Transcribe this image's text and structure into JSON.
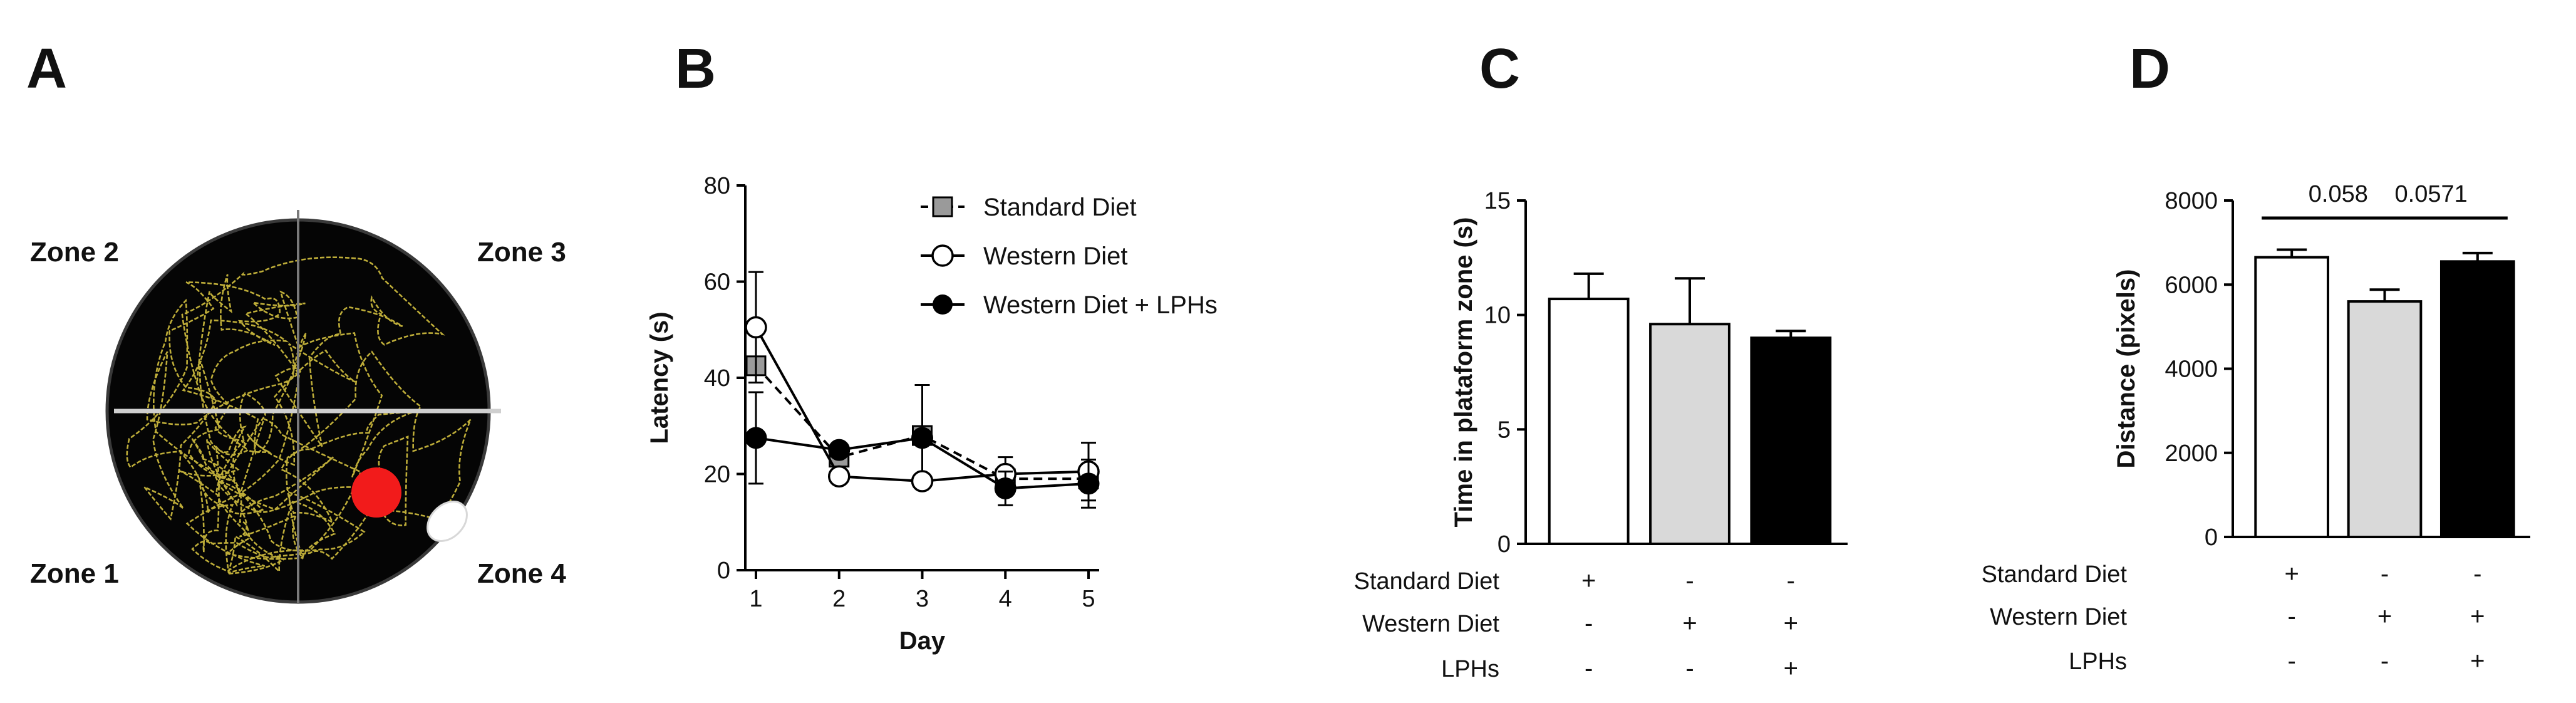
{
  "panels": [
    {
      "label": "A"
    },
    {
      "label": "B"
    },
    {
      "label": "C"
    },
    {
      "label": "D"
    }
  ],
  "colors": {
    "track": "#c8b63c",
    "platform": "#f21b1b",
    "arena": "#050505",
    "standard": "#ffffff",
    "western": "#d9d9d9",
    "lphs": "#000000",
    "marker_standard": "#9a9a9a"
  },
  "maze": {
    "zones": [
      "Zone 2",
      "Zone 3",
      "Zone 1",
      "Zone 4"
    ]
  },
  "chart_data": [
    {
      "id": "B",
      "type": "line",
      "x": [
        1,
        2,
        3,
        4,
        5
      ],
      "xlabel": "Day",
      "ylabel": "Latency (s)",
      "ylim": [
        0,
        80
      ],
      "yticks": [
        0,
        20,
        40,
        60,
        80
      ],
      "xticks": [
        1,
        2,
        3,
        4,
        5
      ],
      "legend_position": "top-right",
      "series": [
        {
          "name": "Standard Diet",
          "values": [
            42.5,
            23.5,
            28,
            19,
            19
          ],
          "err": [
            0,
            0,
            10.5,
            0,
            0
          ],
          "marker": "square",
          "dashed": true
        },
        {
          "name": "Western Diet",
          "values": [
            50.5,
            19.5,
            18.5,
            20,
            20.5
          ],
          "err": [
            11.5,
            0,
            0,
            3.5,
            6
          ],
          "marker": "circle-open",
          "dashed": false
        },
        {
          "name": "Western Diet + LPHs",
          "values": [
            27.5,
            25,
            27.5,
            17,
            18
          ],
          "err": [
            9.5,
            0,
            0,
            3.5,
            5
          ],
          "marker": "circle-filled",
          "dashed": false
        }
      ]
    },
    {
      "id": "C",
      "type": "bar",
      "ylabel": "Time in plataform zone (s)",
      "ylim": [
        0,
        15
      ],
      "yticks": [
        0,
        5,
        10,
        15
      ],
      "categories": [
        "Standard Diet",
        "Western Diet",
        "Western Diet + LPHs"
      ],
      "values": [
        10.7,
        9.6,
        9.0
      ],
      "err": [
        1.1,
        2.0,
        0.3
      ],
      "row_labels": [
        "Standard Diet",
        "Western Diet",
        "LPHs"
      ],
      "row_signs": [
        [
          "+",
          "-",
          "-"
        ],
        [
          "-",
          "+",
          "+"
        ],
        [
          "-",
          "-",
          "+"
        ]
      ]
    },
    {
      "id": "D",
      "type": "bar",
      "ylabel": "Distance (pixels)",
      "ylim": [
        0,
        8000
      ],
      "yticks": [
        0,
        2000,
        4000,
        6000,
        8000
      ],
      "categories": [
        "Standard Diet",
        "Western Diet",
        "Western Diet + LPHs"
      ],
      "values": [
        6650,
        5600,
        6550
      ],
      "err": [
        180,
        280,
        200
      ],
      "row_labels": [
        "Standard Diet",
        "Western Diet",
        "LPHs"
      ],
      "row_signs": [
        [
          "+",
          "-",
          "-"
        ],
        [
          "-",
          "+",
          "+"
        ],
        [
          "-",
          "-",
          "+"
        ]
      ],
      "annotations": [
        {
          "text": "0.058",
          "from": 0,
          "to": 1
        },
        {
          "text": "0.0571",
          "from": 1,
          "to": 2
        }
      ]
    }
  ]
}
